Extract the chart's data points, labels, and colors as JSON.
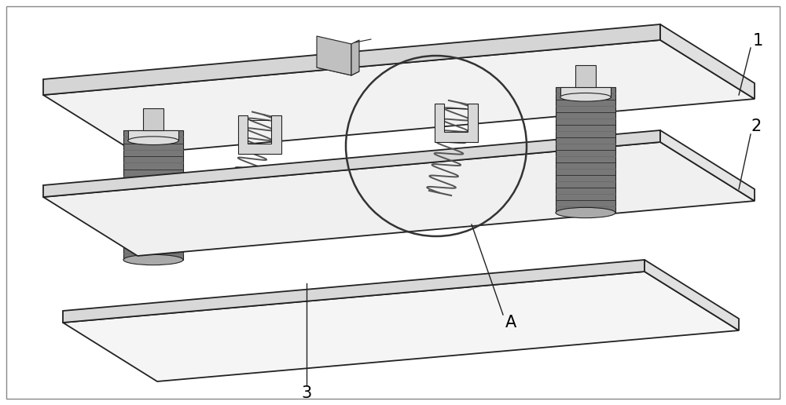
{
  "background_color": "#ffffff",
  "figure_width": 10.0,
  "figure_height": 5.16,
  "dpi": 100,
  "line_color": "#222222",
  "line_color_thin": "#444444",
  "plate_top_color": "#f0f0f0",
  "plate_side_color": "#d8d8d8",
  "plate_front_color": "#e0e0e0",
  "rubber_dark": "#3a3a3a",
  "rubber_mid": "#666666",
  "rubber_light": "#999999",
  "spring_color": "#555555",
  "bracket_color": "#d0d0d0",
  "block_color": "#c8c8c8",
  "label_fontsize": 15,
  "lw_main": 1.3,
  "lw_thin": 0.8,
  "lw_spring": 1.4
}
